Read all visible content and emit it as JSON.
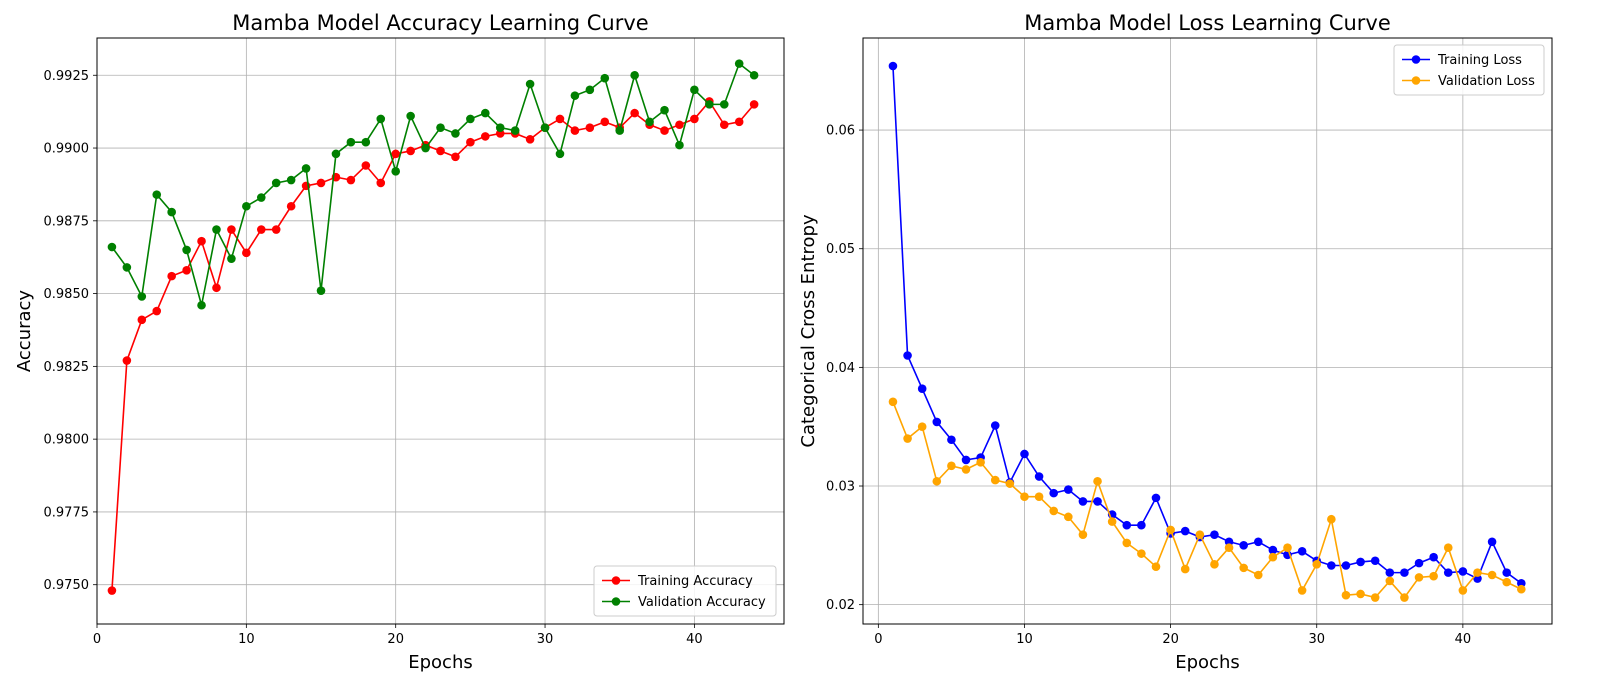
{
  "chart_data": [
    {
      "type": "line",
      "title": "Mamba Model Accuracy Learning Curve",
      "xlabel": "Epochs",
      "ylabel": "Accuracy",
      "xlim": [
        0,
        46
      ],
      "ylim": [
        0.97365,
        0.99378
      ],
      "xticks": [
        0,
        10,
        20,
        30,
        40
      ],
      "yticks": [
        0.975,
        0.9775,
        0.98,
        0.9825,
        0.985,
        0.9875,
        0.99,
        0.9925
      ],
      "ytick_labels": [
        "0.9750",
        "0.9775",
        "0.9800",
        "0.9825",
        "0.9850",
        "0.9875",
        "0.9900",
        "0.9925"
      ],
      "grid": true,
      "legend_position": "lower right",
      "x": [
        1,
        2,
        3,
        4,
        5,
        6,
        7,
        8,
        9,
        10,
        11,
        12,
        13,
        14,
        15,
        16,
        17,
        18,
        19,
        20,
        21,
        22,
        23,
        24,
        25,
        26,
        27,
        28,
        29,
        30,
        31,
        32,
        33,
        34,
        35,
        36,
        37,
        38,
        39,
        40,
        41,
        42,
        43,
        44
      ],
      "series": [
        {
          "name": "Training Accuracy",
          "color": "#ff0000",
          "values": [
            0.9748,
            0.9827,
            0.9841,
            0.9844,
            0.9856,
            0.9858,
            0.9868,
            0.9852,
            0.9872,
            0.9864,
            0.9872,
            0.9872,
            0.988,
            0.9887,
            0.9888,
            0.989,
            0.9889,
            0.9894,
            0.9888,
            0.9898,
            0.9899,
            0.9901,
            0.9899,
            0.9897,
            0.9902,
            0.9904,
            0.9905,
            0.9905,
            0.9903,
            0.9907,
            0.991,
            0.9906,
            0.9907,
            0.9909,
            0.9907,
            0.9912,
            0.9908,
            0.9906,
            0.9908,
            0.991,
            0.9916,
            0.9908,
            0.9909,
            0.9915
          ]
        },
        {
          "name": "Validation Accuracy",
          "color": "#008000",
          "values": [
            0.9866,
            0.9859,
            0.9849,
            0.9884,
            0.9878,
            0.9865,
            0.9846,
            0.9872,
            0.9862,
            0.988,
            0.9883,
            0.9888,
            0.9889,
            0.9893,
            0.9851,
            0.9898,
            0.9902,
            0.9902,
            0.991,
            0.9892,
            0.9911,
            0.99,
            0.9907,
            0.9905,
            0.991,
            0.9912,
            0.9907,
            0.9906,
            0.9922,
            0.9907,
            0.9898,
            0.9918,
            0.992,
            0.9924,
            0.9906,
            0.9925,
            0.9909,
            0.9913,
            0.9901,
            0.992,
            0.9915,
            0.9915,
            0.9929,
            0.9925
          ]
        }
      ]
    },
    {
      "type": "line",
      "title": "Mamba Model Loss Learning Curve",
      "xlabel": "Epochs",
      "ylabel": "Categorical Cross Entropy",
      "xlim": [
        -1.05,
        46.1
      ],
      "ylim": [
        0.01837,
        0.06776
      ],
      "xticks": [
        0,
        10,
        20,
        30,
        40
      ],
      "yticks": [
        0.02,
        0.03,
        0.04,
        0.05,
        0.06
      ],
      "ytick_labels": [
        "0.02",
        "0.03",
        "0.04",
        "0.05",
        "0.06"
      ],
      "grid": true,
      "legend_position": "upper right",
      "x": [
        1,
        2,
        3,
        4,
        5,
        6,
        7,
        8,
        9,
        10,
        11,
        12,
        13,
        14,
        15,
        16,
        17,
        18,
        19,
        20,
        21,
        22,
        23,
        24,
        25,
        26,
        27,
        28,
        29,
        30,
        31,
        32,
        33,
        34,
        35,
        36,
        37,
        38,
        39,
        40,
        41,
        42,
        43,
        44
      ],
      "series": [
        {
          "name": "Training Loss",
          "color": "#0000ff",
          "values": [
            0.0654,
            0.041,
            0.0382,
            0.0354,
            0.0339,
            0.0322,
            0.0324,
            0.0351,
            0.0303,
            0.0327,
            0.0308,
            0.0294,
            0.0297,
            0.0287,
            0.0287,
            0.0276,
            0.0267,
            0.0267,
            0.029,
            0.026,
            0.0262,
            0.0257,
            0.0259,
            0.0253,
            0.025,
            0.0253,
            0.0246,
            0.0242,
            0.0245,
            0.0237,
            0.0233,
            0.0233,
            0.0236,
            0.0237,
            0.0227,
            0.0227,
            0.0235,
            0.024,
            0.0227,
            0.0228,
            0.0222,
            0.0253,
            0.0227,
            0.0218
          ]
        },
        {
          "name": "Validation Loss",
          "color": "#ffa500",
          "values": [
            0.0371,
            0.034,
            0.035,
            0.0304,
            0.0317,
            0.0314,
            0.032,
            0.0305,
            0.0302,
            0.0291,
            0.0291,
            0.0279,
            0.0274,
            0.0259,
            0.0304,
            0.027,
            0.0252,
            0.0243,
            0.0232,
            0.0263,
            0.023,
            0.0259,
            0.0234,
            0.0248,
            0.0231,
            0.0225,
            0.024,
            0.0248,
            0.0212,
            0.0234,
            0.0272,
            0.0208,
            0.0209,
            0.0206,
            0.022,
            0.0206,
            0.0223,
            0.0224,
            0.0248,
            0.0212,
            0.0227,
            0.0225,
            0.0219,
            0.0213
          ]
        }
      ]
    }
  ]
}
